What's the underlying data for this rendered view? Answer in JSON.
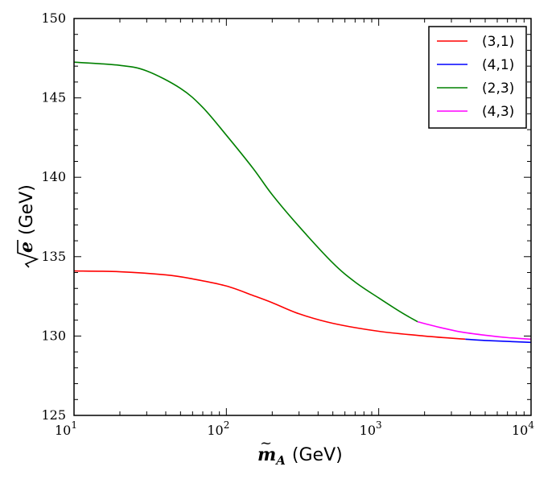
{
  "chart_data": {
    "type": "line",
    "xscale": "log",
    "xlim": [
      10,
      10000
    ],
    "ylim": [
      125,
      150
    ],
    "xlabel": {
      "symbol": "m",
      "sub": "A",
      "unit": "(GeV)"
    },
    "ylabel": {
      "symbol": "e",
      "unit": "(GeV)"
    },
    "xticks": [
      {
        "value": 10,
        "base": "10",
        "exp": "1"
      },
      {
        "value": 100,
        "base": "10",
        "exp": "2"
      },
      {
        "value": 1000,
        "base": "10",
        "exp": "3"
      },
      {
        "value": 10000,
        "base": "10",
        "exp": "4"
      }
    ],
    "yticks": [
      125,
      130,
      135,
      140,
      145,
      150
    ],
    "legend_position": "top-right",
    "series": [
      {
        "name": "(3,1)",
        "color": "#ff0000",
        "x": [
          10,
          20,
          40,
          60,
          100,
          150,
          200,
          300,
          500,
          1000,
          2000,
          3700
        ],
        "y": [
          134.1,
          134.05,
          133.85,
          133.6,
          133.15,
          132.55,
          132.1,
          131.4,
          130.8,
          130.3,
          130.0,
          129.8
        ]
      },
      {
        "name": "(4,1)",
        "color": "#0000ff",
        "x": [
          3700,
          5000,
          7000,
          10000
        ],
        "y": [
          129.8,
          129.72,
          129.66,
          129.6
        ]
      },
      {
        "name": "(2,3)",
        "color": "#008000",
        "x": [
          10,
          20,
          30,
          50,
          70,
          100,
          150,
          200,
          300,
          500,
          700,
          1000,
          1400,
          1800
        ],
        "y": [
          147.25,
          147.05,
          146.7,
          145.6,
          144.4,
          142.65,
          140.55,
          138.9,
          136.9,
          134.6,
          133.4,
          132.4,
          131.5,
          130.9
        ]
      },
      {
        "name": "(4,3)",
        "color": "#ff00ff",
        "x": [
          1800,
          2500,
          3500,
          5000,
          7000,
          10000
        ],
        "y": [
          130.9,
          130.55,
          130.25,
          130.05,
          129.9,
          129.8
        ]
      }
    ]
  }
}
